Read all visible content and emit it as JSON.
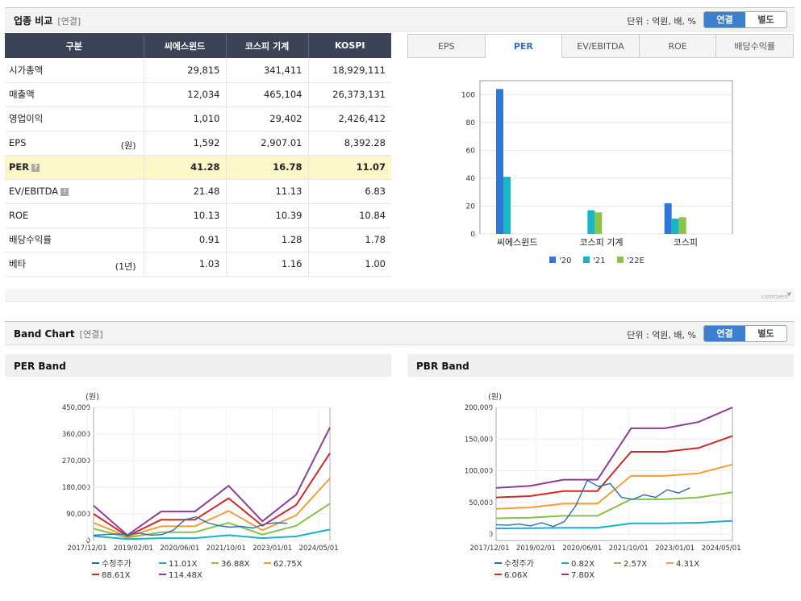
{
  "comparison": {
    "title": "업종 비교",
    "tag": "[연결]",
    "unit": "단위 : 억원, 배, %",
    "toggle": [
      "연결",
      "별도"
    ],
    "headers": [
      "구분",
      "씨에스윈드",
      "코스피 기계",
      "KOSPI"
    ],
    "rows": [
      {
        "label": "시가총액",
        "sub": "",
        "values": [
          "29,815",
          "341,411",
          "18,929,111"
        ]
      },
      {
        "label": "매출액",
        "sub": "",
        "values": [
          "12,034",
          "465,104",
          "26,373,131"
        ]
      },
      {
        "label": "영업이익",
        "sub": "",
        "values": [
          "1,010",
          "29,402",
          "2,426,412"
        ]
      },
      {
        "label": "EPS",
        "sub": "(원)",
        "values": [
          "1,592",
          "2,907.01",
          "8,392.28"
        ]
      },
      {
        "label": "PER",
        "sub": "",
        "values": [
          "41.28",
          "16.78",
          "11.07"
        ],
        "help": "?",
        "highlight": true
      },
      {
        "label": "EV/EBITDA",
        "sub": "",
        "values": [
          "21.48",
          "11.13",
          "6.83"
        ],
        "help": "?"
      },
      {
        "label": "ROE",
        "sub": "",
        "values": [
          "10.13",
          "10.39",
          "10.84"
        ]
      },
      {
        "label": "배당수익률",
        "sub": "",
        "values": [
          "0.91",
          "1.28",
          "1.78"
        ]
      },
      {
        "label": "베타",
        "sub": "(1년)",
        "values": [
          "1.03",
          "1.16",
          "1.00"
        ]
      }
    ],
    "tabs": [
      "EPS",
      "PER",
      "EV/EBITDA",
      "ROE",
      "배당수익률"
    ],
    "active_tab": "PER",
    "comment_label": "comment"
  },
  "band": {
    "title": "Band Chart",
    "tag": "[연결]",
    "unit": "단위 : 억원, 배, %",
    "toggle": [
      "연결",
      "별도"
    ]
  },
  "chart_data": [
    {
      "type": "bar",
      "categories": [
        "씨에스윈드",
        "코스피 기계",
        "코스피"
      ],
      "series": [
        {
          "name": "'20",
          "values": [
            104,
            null,
            22
          ],
          "color": "#2e78d8"
        },
        {
          "name": "'21",
          "values": [
            41,
            17,
            11
          ],
          "color": "#17b7c8"
        },
        {
          "name": "'22E",
          "values": [
            null,
            15.5,
            12
          ],
          "color": "#8ac44a"
        }
      ],
      "ylim": [
        0,
        110
      ],
      "yticks": [
        0,
        20,
        40,
        60,
        80,
        100
      ]
    },
    {
      "type": "line",
      "title": "PER Band",
      "unit_label": "(원)",
      "x": [
        "2017/12/01",
        "2019/02/01",
        "2020/06/01",
        "2021/10/01",
        "2023/01/01",
        "2024/05/01"
      ],
      "ylim": [
        0,
        450000
      ],
      "yticks": [
        "0",
        "90,000",
        "180,000",
        "270,000",
        "360,000",
        "450,000"
      ],
      "bands": [
        {
          "name": "11.01X",
          "color": "#17b2c8",
          "values": [
            15000,
            5000,
            8000,
            8000,
            18000,
            8000,
            14000,
            37000
          ]
        },
        {
          "name": "36.88X",
          "color": "#88c048",
          "values": [
            40000,
            10000,
            28000,
            28000,
            60000,
            20000,
            50000,
            125000
          ]
        },
        {
          "name": "62.75X",
          "color": "#f1a033",
          "values": [
            60000,
            13000,
            48000,
            48000,
            100000,
            35000,
            85000,
            210000
          ]
        },
        {
          "name": "88.61X",
          "color": "#cf2a2a",
          "values": [
            90000,
            15000,
            70000,
            70000,
            143000,
            50000,
            120000,
            295000
          ]
        },
        {
          "name": "114.48X",
          "color": "#8e3c96",
          "values": [
            118000,
            18000,
            98000,
            98000,
            185000,
            65000,
            155000,
            382000
          ]
        }
      ],
      "price": {
        "name": "수정주가",
        "color": "#2a6fb5",
        "values": [
          18000,
          20000,
          22000,
          20000,
          25000,
          18000,
          20000,
          35000,
          70000,
          80000,
          60000,
          50000,
          45000,
          48000,
          42000,
          56000,
          60000,
          58000
        ]
      }
    },
    {
      "type": "line",
      "title": "PBR Band",
      "unit_label": "(원)",
      "x": [
        "2017/12/01",
        "2019/02/01",
        "2020/06/01",
        "2021/10/01",
        "2023/01/01",
        "2024/05/01"
      ],
      "ylim": [
        -10000,
        200000
      ],
      "yticks": [
        "0",
        "50,000",
        "100,000",
        "150,000",
        "200,000"
      ],
      "bands": [
        {
          "name": "0.82X",
          "color": "#17b2c8",
          "values": [
            9000,
            9500,
            10000,
            10000,
            17000,
            17000,
            18000,
            21000
          ]
        },
        {
          "name": "2.57X",
          "color": "#88c048",
          "values": [
            25000,
            26000,
            29000,
            29000,
            55000,
            55000,
            58000,
            66000
          ]
        },
        {
          "name": "4.31X",
          "color": "#f1a033",
          "values": [
            40000,
            42000,
            48000,
            48000,
            92000,
            92000,
            96000,
            110000
          ]
        },
        {
          "name": "6.06X",
          "color": "#cf2a2a",
          "values": [
            58000,
            60000,
            68000,
            68000,
            130000,
            130000,
            136000,
            155000
          ]
        },
        {
          "name": "7.80X",
          "color": "#8e3c96",
          "values": [
            73000,
            76000,
            86000,
            86000,
            167000,
            167000,
            177000,
            200000
          ]
        }
      ],
      "price": {
        "name": "수정주가",
        "color": "#2a6fb5",
        "values": [
          15000,
          14000,
          16000,
          13000,
          18000,
          12000,
          20000,
          45000,
          85000,
          75000,
          80000,
          58000,
          55000,
          62000,
          58000,
          70000,
          65000,
          73000
        ]
      }
    }
  ]
}
